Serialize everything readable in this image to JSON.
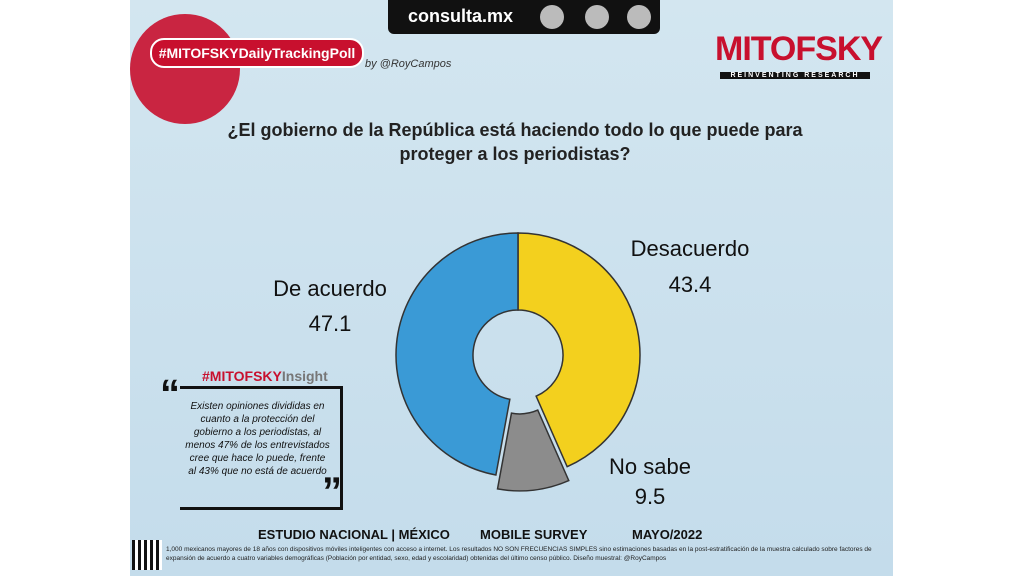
{
  "header": {
    "site": "consulta.mx",
    "hashtag": "#MITOFSKYDailyTrackingPoll",
    "byline": "by @RoyCampos",
    "brand": "MITOFSKY",
    "brand_tagline": "REINVENTING RESEARCH"
  },
  "chart_data": {
    "type": "donut",
    "title": "¿El gobierno de la República está haciendo todo lo que puede para proteger a los periodistas?",
    "categories": [
      "Desacuerdo",
      "No sabe",
      "De acuerdo"
    ],
    "values": [
      43.4,
      9.5,
      47.1
    ],
    "colors": [
      "#f3d01e",
      "#8c8c8c",
      "#3a9ad6"
    ]
  },
  "insight": {
    "tag_brand": "#MITOFSKY",
    "tag_word": "Insight",
    "text": "Existen opiniones divididas en cuanto a la protección del gobierno a los periodistas, al menos 47% de los entrevistados cree que hace lo puede, frente al 43% que no está de acuerdo"
  },
  "footer": {
    "study": "ESTUDIO NACIONAL | MÉXICO",
    "method": "MOBILE SURVEY",
    "date": "MAYO/2022",
    "note": "1,000 mexicanos mayores de 18 años con dispositivos móviles inteligentes con acceso a internet. Los resultados NO SON FRECUENCIAS SIMPLES sino estimaciones basadas en la post-estratificación de la muestra calculado sobre factores de expansión de acuerdo a cuatro variables demográficas (Población por entidad, sexo, edad y escolaridad) obtenidas del último censo público. Diseño muestral: @RoyCampos"
  }
}
